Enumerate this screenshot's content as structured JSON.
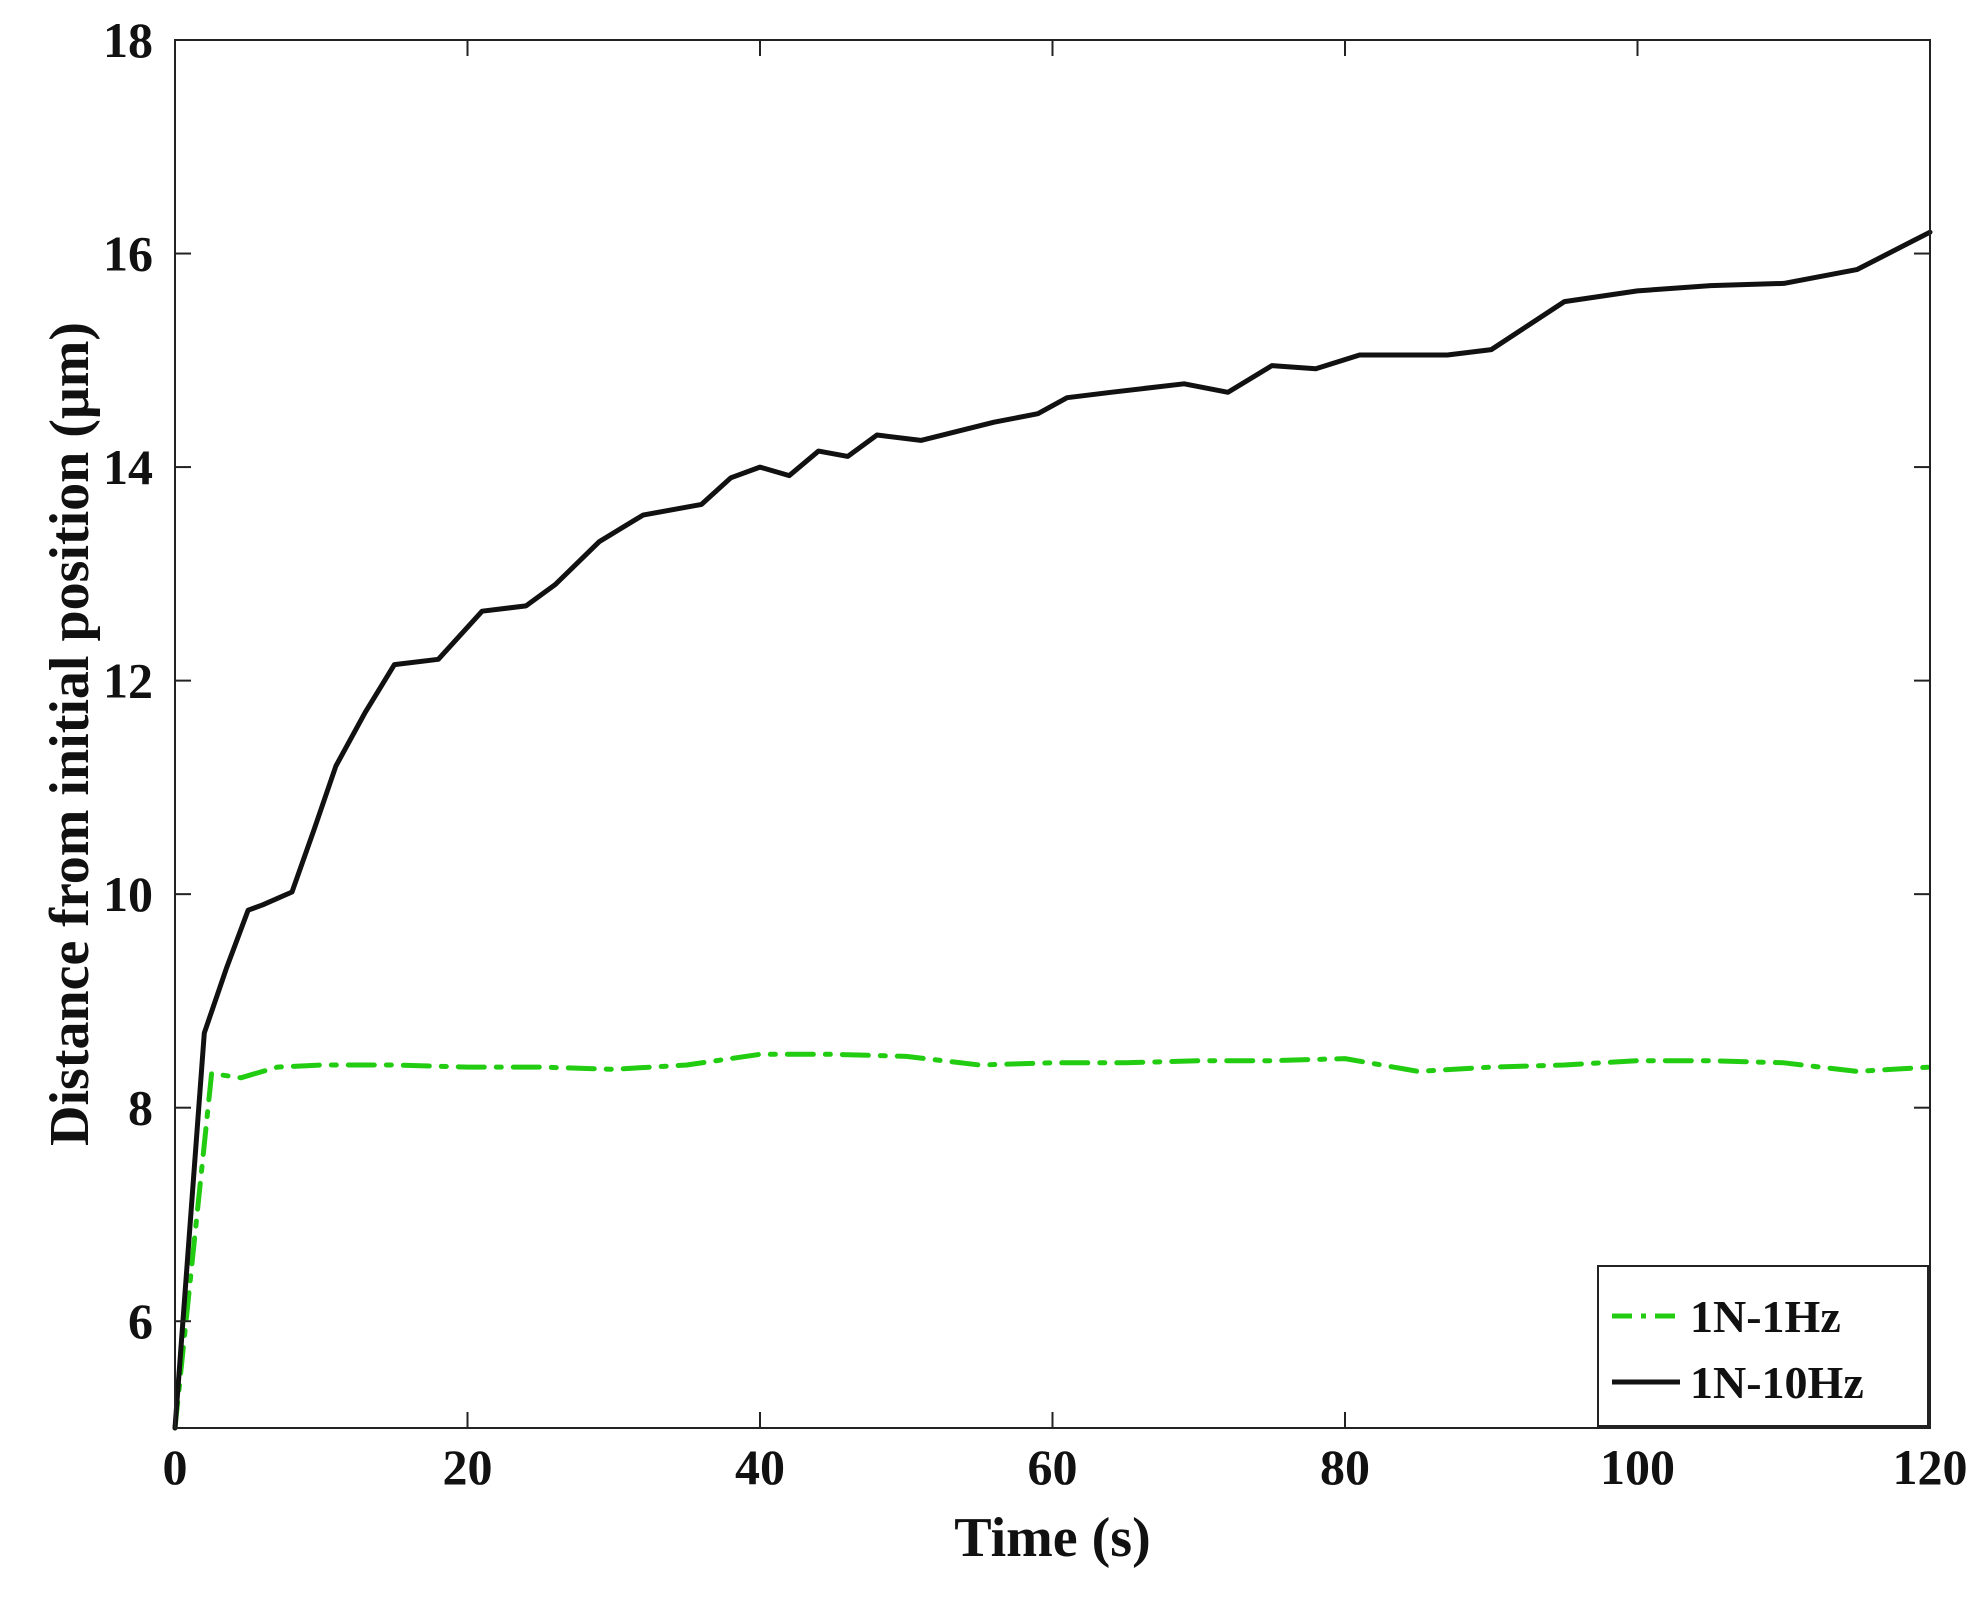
{
  "chart_data": {
    "type": "line",
    "title": "",
    "xlabel": "Time (s)",
    "ylabel": "Distance from initial position (μm)",
    "xlim": [
      0,
      120
    ],
    "ylim": [
      5,
      18
    ],
    "xticks": [
      0,
      20,
      40,
      60,
      80,
      100,
      120
    ],
    "xtick_labels": [
      "0",
      "20",
      "40",
      "60",
      "80",
      "100",
      "120"
    ],
    "yticks": [
      6,
      8,
      10,
      12,
      14,
      16,
      18
    ],
    "ytick_labels": [
      "6",
      "8",
      "10",
      "12",
      "14",
      "16",
      "18"
    ],
    "grid": false,
    "legend": {
      "position": "bottom-right"
    },
    "series": [
      {
        "name": "1N-1Hz",
        "color": "#22cc11",
        "style": "dash-dot",
        "x": [
          0,
          2.5,
          4.5,
          7,
          10,
          15,
          20,
          25,
          30,
          35,
          40,
          45,
          50,
          55,
          60,
          65,
          70,
          75,
          80,
          85,
          90,
          95,
          100,
          105,
          110,
          115,
          120
        ],
        "y": [
          5.0,
          8.32,
          8.28,
          8.38,
          8.4,
          8.4,
          8.38,
          8.38,
          8.36,
          8.4,
          8.5,
          8.5,
          8.48,
          8.4,
          8.42,
          8.42,
          8.44,
          8.44,
          8.46,
          8.34,
          8.38,
          8.4,
          8.44,
          8.44,
          8.42,
          8.34,
          8.38
        ]
      },
      {
        "name": "1N-10Hz",
        "color": "#111111",
        "style": "solid",
        "x": [
          0,
          2,
          3.5,
          5,
          6,
          8,
          9.5,
          11,
          13,
          15,
          18,
          21,
          24,
          26,
          29,
          32,
          36,
          38,
          40,
          42,
          44,
          46,
          48,
          51,
          56,
          59,
          61,
          64,
          69,
          72,
          75,
          78,
          81,
          84,
          87,
          90,
          95,
          100,
          105,
          110,
          115,
          120
        ],
        "y": [
          5.0,
          8.7,
          9.3,
          9.85,
          9.9,
          10.02,
          10.6,
          11.2,
          11.7,
          12.15,
          12.2,
          12.65,
          12.7,
          12.9,
          13.3,
          13.55,
          13.65,
          13.9,
          14.0,
          13.92,
          14.15,
          14.1,
          14.3,
          14.25,
          14.42,
          14.5,
          14.65,
          14.7,
          14.78,
          14.7,
          14.95,
          14.92,
          15.05,
          15.05,
          15.05,
          15.1,
          15.55,
          15.65,
          15.7,
          15.72,
          15.85,
          16.2
        ]
      }
    ]
  }
}
